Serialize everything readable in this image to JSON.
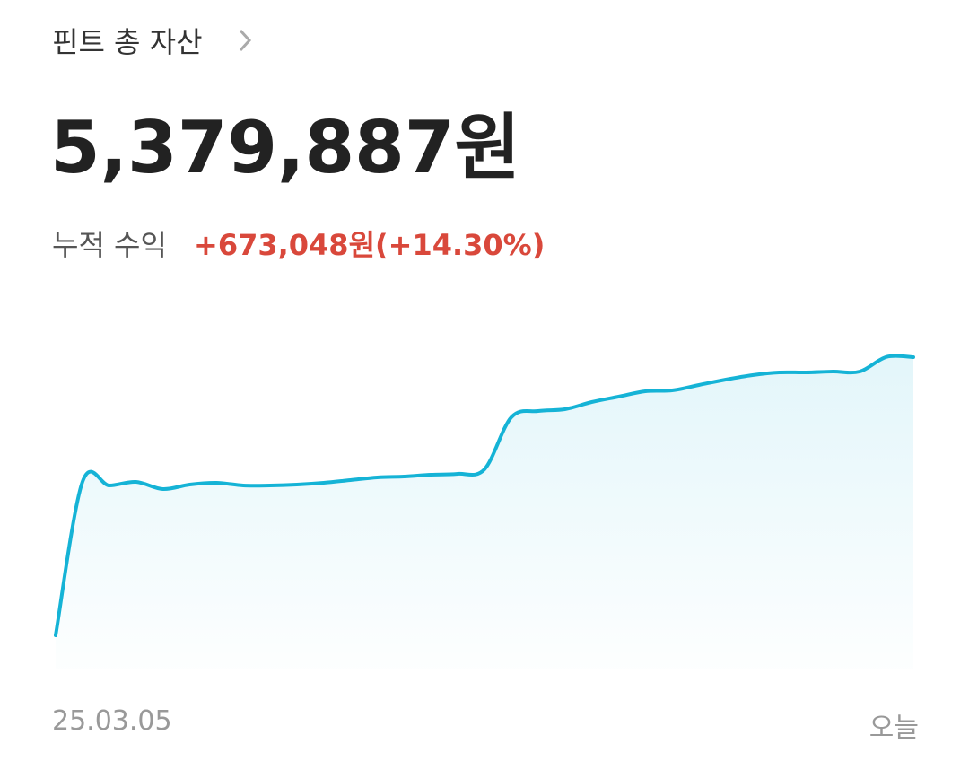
{
  "header": {
    "title": "핀트 총 자산"
  },
  "total": "5,379,887원",
  "profit": {
    "label": "누적 수익",
    "value": "+673,048원(+14.30%)"
  },
  "chart_data": {
    "type": "area",
    "color": "#15b3d6",
    "values": [
      573600,
      3224800,
      3162800,
      3224800,
      3100800,
      3178300,
      3209300,
      3162800,
      3162800,
      3178300,
      3209300,
      3255800,
      3302400,
      3317900,
      3348900,
      3364400,
      3441900,
      4341100,
      4449600,
      4480700,
      4604700,
      4697700,
      4790700,
      4806200,
      4899300,
      4992300,
      5069800,
      5116300,
      5116300,
      5131800,
      5131800,
      5385000,
      5379887
    ],
    "ylim": [
      0,
      5400000
    ],
    "x_start_label": "25.03.05",
    "x_end_label": "오늘"
  }
}
